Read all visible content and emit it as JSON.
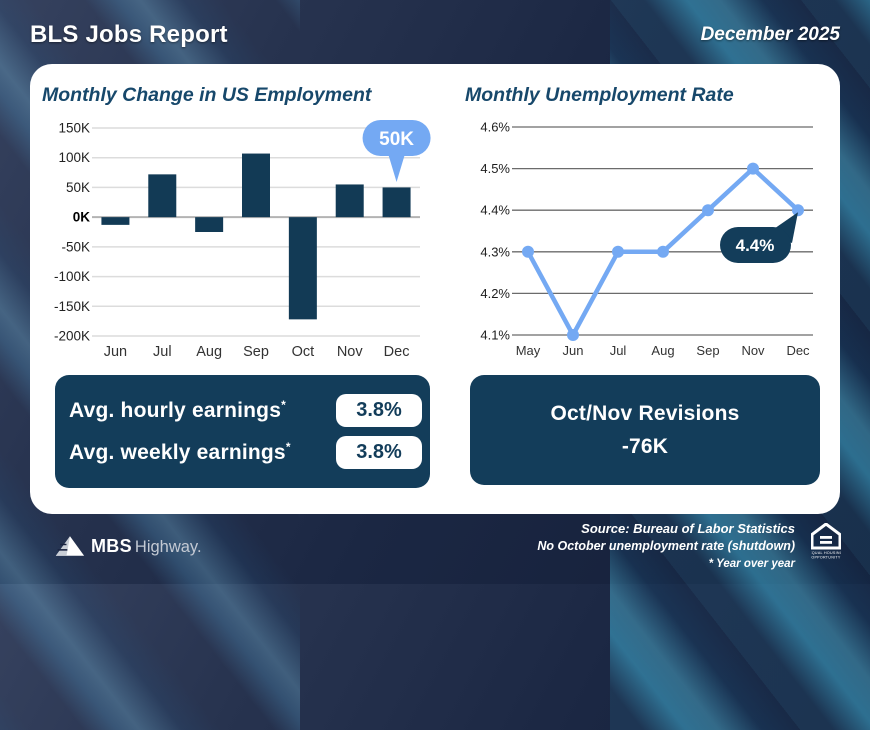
{
  "header": {
    "title": "BLS Jobs Report",
    "date": "December 2025"
  },
  "chart_data": [
    {
      "type": "bar",
      "title": "Monthly Change in US Employment",
      "categories": [
        "Jun",
        "Jul",
        "Aug",
        "Sep",
        "Oct",
        "Nov",
        "Dec"
      ],
      "values": [
        -13,
        72,
        -25,
        107,
        -172,
        55,
        50
      ],
      "unit": "K jobs (thousands)",
      "ylim": [
        -200,
        150
      ],
      "ytick_step": 50,
      "ytick_labels": [
        "150K",
        "100K",
        "50K",
        "0K",
        "-50K",
        "-100K",
        "-150K",
        "-200K"
      ],
      "grid": true,
      "legend": "none",
      "callout": {
        "label": "50K",
        "category": "Dec"
      }
    },
    {
      "type": "line",
      "title": "Monthly Unemployment Rate",
      "categories": [
        "May",
        "Jun",
        "Jul",
        "Aug",
        "Sep",
        "Nov",
        "Dec"
      ],
      "values": [
        4.3,
        4.1,
        4.3,
        4.3,
        4.4,
        4.5,
        4.4
      ],
      "unit": "%",
      "ylim": [
        4.1,
        4.6
      ],
      "ytick_step": 0.1,
      "ytick_labels": [
        "4.6%",
        "4.5%",
        "4.4%",
        "4.3%",
        "4.2%",
        "4.1%"
      ],
      "grid": true,
      "legend": "none",
      "callout": {
        "label": "4.4%",
        "category": "Dec"
      }
    }
  ],
  "earnings_box": {
    "rows": [
      {
        "label": "Avg. hourly earnings",
        "footnote_marker": "*",
        "value": "3.8%"
      },
      {
        "label": "Avg. weekly earnings",
        "footnote_marker": "*",
        "value": "3.8%"
      }
    ]
  },
  "revisions_box": {
    "title": "Oct/Nov Revisions",
    "value": "-76K"
  },
  "footer": {
    "brand_bold": "MBS",
    "brand_light": "Highway.",
    "source": "Source: Bureau of Labor Statistics",
    "note_shutdown": "No October unemployment rate (shutdown)",
    "note_yoy": "* Year over year",
    "equal_housing_line1": "EQUAL HOUSING",
    "equal_housing_line2": "OPPORTUNITY"
  },
  "colors": {
    "accent_dark_navy": "#123a55",
    "accent_light_blue": "#74a9f3",
    "title_navy": "#17486b",
    "box_navy": "#133d5a",
    "grid_light": "#dcdcdc",
    "grid_zero": "#b3b3b3",
    "grid_dark": "#6b6b6b",
    "card_bg": "#ffffff"
  }
}
